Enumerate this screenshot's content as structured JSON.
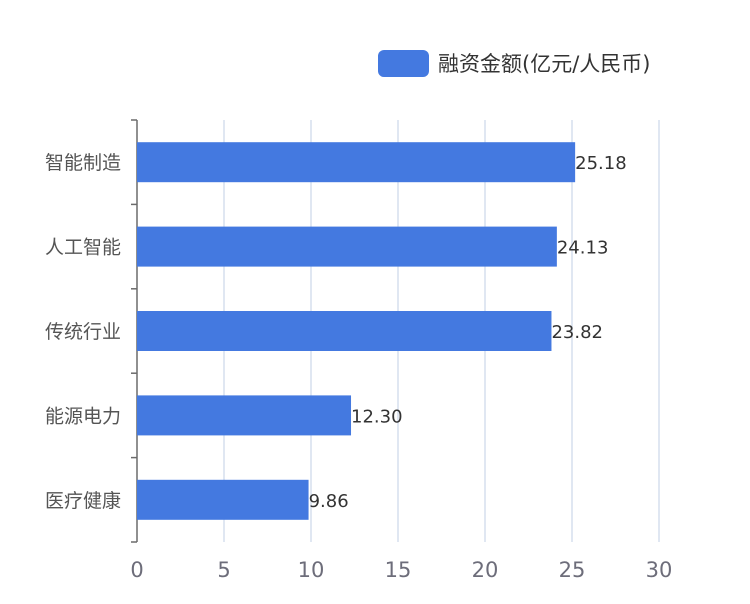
{
  "chart_data": {
    "type": "bar",
    "orientation": "horizontal",
    "categories": [
      "智能制造",
      "人工智能",
      "传统行业",
      "能源电力",
      "医疗健康"
    ],
    "series": [
      {
        "name": "融资金额(亿元/人民币)",
        "values": [
          25.18,
          24.13,
          23.82,
          12.3,
          9.86
        ],
        "value_labels": [
          "25.18",
          "24.13",
          "23.82",
          "12.30",
          "9.86"
        ],
        "color": "#4479e0"
      }
    ],
    "x_ticks": [
      0,
      5,
      10,
      15,
      20,
      25,
      30
    ],
    "xlim": [
      0,
      30
    ],
    "grid": "vertical",
    "legend": "top-right"
  },
  "colors": {
    "bar": "#4479e0",
    "grid": "#d6dfee",
    "axis": "#6b6b6b",
    "tick_label": "#6d6d7a",
    "category_label": "#555555",
    "value_label": "#333333",
    "legend_text": "#333333"
  }
}
